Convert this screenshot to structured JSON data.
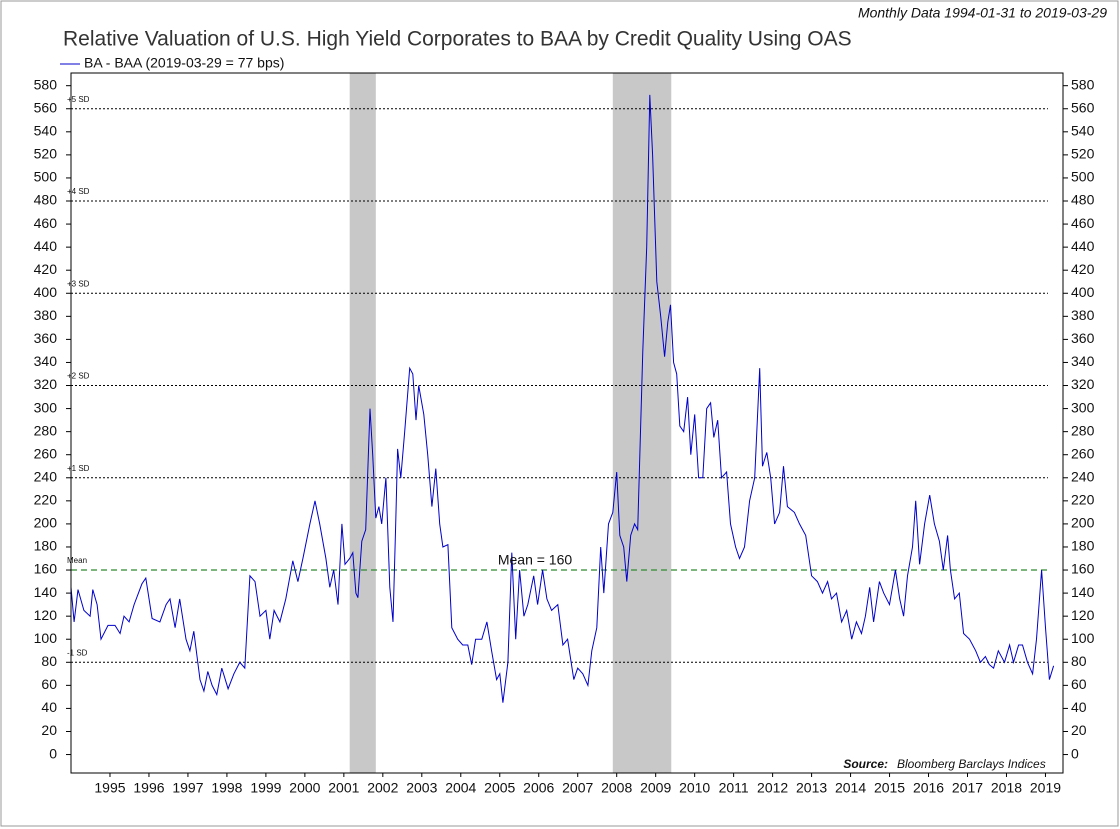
{
  "chart_data": {
    "type": "line",
    "title": "Relative Valuation of U.S. High Yield Corporates to BAA by Credit Quality Using OAS",
    "subtitle": "Monthly Data 1994-01-31 to 2019-03-29",
    "source_label": "Source:",
    "source": "Bloomberg Barclays Indices",
    "annotations": [
      {
        "text": "Mean = 160"
      }
    ],
    "x": [
      1994.0,
      1994.08,
      1994.18,
      1994.33,
      1994.49,
      1994.56,
      1994.67,
      1994.77,
      1994.95,
      1995.13,
      1995.26,
      1995.36,
      1995.49,
      1995.62,
      1995.82,
      1995.92,
      1996.08,
      1996.28,
      1996.44,
      1996.54,
      1996.67,
      1996.79,
      1996.95,
      1997.05,
      1997.15,
      1997.31,
      1997.41,
      1997.51,
      1997.62,
      1997.74,
      1997.87,
      1998.03,
      1998.18,
      1998.33,
      1998.46,
      1998.59,
      1998.72,
      1998.85,
      1999.0,
      1999.1,
      1999.21,
      1999.36,
      1999.51,
      1999.69,
      1999.82,
      1999.95,
      2000.13,
      2000.26,
      2000.38,
      2000.54,
      2000.64,
      2000.74,
      2000.85,
      2000.95,
      2001.03,
      2001.15,
      2001.23,
      2001.31,
      2001.36,
      2001.46,
      2001.56,
      2001.67,
      2001.74,
      2001.82,
      2001.9,
      2001.97,
      2002.08,
      2002.18,
      2002.26,
      2002.33,
      2002.38,
      2002.46,
      2002.56,
      2002.69,
      2002.77,
      2002.85,
      2002.92,
      2003.05,
      2003.15,
      2003.26,
      2003.36,
      2003.46,
      2003.54,
      2003.67,
      2003.77,
      2003.92,
      2004.05,
      2004.18,
      2004.28,
      2004.38,
      2004.54,
      2004.67,
      2004.79,
      2004.92,
      2005.0,
      2005.08,
      2005.21,
      2005.31,
      2005.41,
      2005.51,
      2005.62,
      2005.72,
      2005.87,
      2005.97,
      2006.1,
      2006.21,
      2006.33,
      2006.49,
      2006.62,
      2006.74,
      2006.9,
      2007.0,
      2007.13,
      2007.26,
      2007.36,
      2007.49,
      2007.59,
      2007.67,
      2007.79,
      2007.9,
      2008.0,
      2008.08,
      2008.18,
      2008.26,
      2008.36,
      2008.46,
      2008.54,
      2008.67,
      2008.77,
      2008.85,
      2008.92,
      2009.03,
      2009.13,
      2009.23,
      2009.31,
      2009.38,
      2009.46,
      2009.54,
      2009.62,
      2009.72,
      2009.82,
      2009.9,
      2010.0,
      2010.1,
      2010.21,
      2010.31,
      2010.41,
      2010.49,
      2010.59,
      2010.69,
      2010.82,
      2010.92,
      2011.05,
      2011.15,
      2011.28,
      2011.41,
      2011.54,
      2011.67,
      2011.74,
      2011.85,
      2011.95,
      2012.05,
      2012.18,
      2012.28,
      2012.38,
      2012.56,
      2012.69,
      2012.85,
      2013.0,
      2013.15,
      2013.28,
      2013.41,
      2013.51,
      2013.64,
      2013.77,
      2013.9,
      2014.03,
      2014.15,
      2014.28,
      2014.38,
      2014.49,
      2014.59,
      2014.74,
      2014.85,
      2015.0,
      2015.15,
      2015.26,
      2015.36,
      2015.46,
      2015.59,
      2015.67,
      2015.77,
      2015.9,
      2016.03,
      2016.15,
      2016.28,
      2016.38,
      2016.49,
      2016.56,
      2016.67,
      2016.79,
      2016.9,
      2017.05,
      2017.21,
      2017.33,
      2017.46,
      2017.56,
      2017.67,
      2017.79,
      2017.95,
      2018.08,
      2018.18,
      2018.31,
      2018.41,
      2018.54,
      2018.67,
      2018.77,
      2018.9,
      2019.0,
      2019.1,
      2019.21
    ],
    "series": [
      {
        "name": "BA - BAA (2019-03-29 = 77 bps)",
        "color": "#0000cc",
        "values": [
          145,
          115,
          143,
          125,
          120,
          143,
          130,
          100,
          112,
          112,
          105,
          120,
          115,
          130,
          148,
          153,
          118,
          115,
          130,
          135,
          110,
          135,
          100,
          90,
          107,
          65,
          55,
          72,
          60,
          52,
          75,
          57,
          70,
          80,
          75,
          155,
          150,
          120,
          125,
          100,
          125,
          115,
          135,
          168,
          150,
          170,
          200,
          220,
          200,
          170,
          145,
          160,
          130,
          200,
          165,
          170,
          175,
          140,
          136,
          185,
          195,
          300,
          260,
          205,
          215,
          200,
          240,
          145,
          115,
          200,
          265,
          240,
          280,
          335,
          330,
          290,
          320,
          295,
          260,
          215,
          248,
          200,
          180,
          182,
          110,
          100,
          95,
          95,
          78,
          100,
          100,
          115,
          90,
          65,
          70,
          45,
          80,
          175,
          100,
          160,
          120,
          130,
          155,
          130,
          160,
          135,
          125,
          130,
          95,
          100,
          65,
          75,
          70,
          60,
          90,
          110,
          180,
          140,
          200,
          210,
          245,
          190,
          180,
          150,
          190,
          200,
          195,
          350,
          440,
          572,
          520,
          410,
          380,
          345,
          375,
          390,
          340,
          330,
          285,
          280,
          310,
          260,
          295,
          240,
          240,
          300,
          305,
          275,
          290,
          240,
          245,
          200,
          180,
          170,
          180,
          220,
          240,
          335,
          250,
          262,
          240,
          200,
          210,
          250,
          215,
          210,
          200,
          190,
          155,
          150,
          140,
          150,
          135,
          140,
          115,
          125,
          100,
          115,
          105,
          120,
          145,
          115,
          150,
          140,
          130,
          160,
          135,
          120,
          155,
          180,
          220,
          165,
          200,
          225,
          200,
          185,
          160,
          190,
          160,
          135,
          140,
          105,
          100,
          90,
          80,
          85,
          78,
          75,
          90,
          80,
          95,
          80,
          95,
          95,
          80,
          70,
          100,
          160,
          110,
          65,
          77
        ]
      }
    ],
    "xlim": [
      1994,
      2019.45
    ],
    "xticks": [
      1995,
      1996,
      1997,
      1998,
      1999,
      2000,
      2001,
      2002,
      2003,
      2004,
      2005,
      2006,
      2007,
      2008,
      2009,
      2010,
      2011,
      2012,
      2013,
      2014,
      2015,
      2016,
      2017,
      2018,
      2019
    ],
    "ylim": [
      -16,
      591
    ],
    "yticks": [
      0,
      20,
      40,
      60,
      80,
      100,
      120,
      140,
      160,
      180,
      200,
      220,
      240,
      260,
      280,
      300,
      320,
      340,
      360,
      380,
      400,
      420,
      440,
      460,
      480,
      500,
      520,
      540,
      560,
      580
    ],
    "shaded_periods": [
      {
        "start": 2001.15,
        "end": 2001.82,
        "color": "#c8c8c8"
      },
      {
        "start": 2007.9,
        "end": 2009.4,
        "color": "#c8c8c8"
      }
    ],
    "reference_lines": [
      {
        "value": 560,
        "label": "+5 SD",
        "color": "#000000",
        "style": "dotted"
      },
      {
        "value": 480,
        "label": "+4 SD",
        "color": "#000000",
        "style": "dotted"
      },
      {
        "value": 400,
        "label": "+3 SD",
        "color": "#000000",
        "style": "dotted"
      },
      {
        "value": 320,
        "label": "+2 SD",
        "color": "#000000",
        "style": "dotted"
      },
      {
        "value": 240,
        "label": "+1 SD",
        "color": "#000000",
        "style": "dotted"
      },
      {
        "value": 160,
        "label": "Mean",
        "color": "#2e8b2e",
        "style": "dashed"
      },
      {
        "value": 80,
        "label": "-1 SD",
        "color": "#000000",
        "style": "dotted"
      }
    ]
  }
}
